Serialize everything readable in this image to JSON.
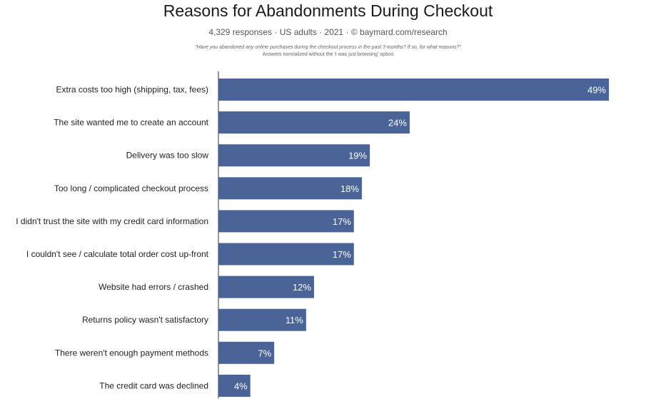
{
  "header": {
    "title": "Reasons for Abandonments During Checkout",
    "subtitle": "4,329 responses  ·  US adults  ·  2021  ·  © baymard.com/research",
    "note_question": "\"Have you abandoned any online purchases during the checkout process in the past 3 months? If so, for what reasons?\"",
    "note_normalized": "Answers normalized without the 'I was just browsing' option"
  },
  "colors": {
    "bar": "#4a6497",
    "axis": "#333333"
  },
  "chart_data": {
    "type": "bar",
    "orientation": "horizontal",
    "title": "Reasons for Abandonments During Checkout",
    "categories": [
      "Extra costs too high (shipping, tax, fees)",
      "The site wanted me to create an account",
      "Delivery was too slow",
      "Too long / complicated checkout process",
      "I didn't trust the site with my credit card information",
      "I couldn't see / calculate total order cost up-front",
      "Website had errors / crashed",
      "Returns policy wasn't satisfactory",
      "There weren't enough payment methods",
      "The credit card was declined"
    ],
    "values": [
      49,
      24,
      19,
      18,
      17,
      17,
      12,
      11,
      7,
      4
    ],
    "value_labels": [
      "49%",
      "24%",
      "19%",
      "18%",
      "17%",
      "17%",
      "12%",
      "11%",
      "7%",
      "4%"
    ],
    "xlim": [
      0,
      49
    ],
    "grid": false
  }
}
